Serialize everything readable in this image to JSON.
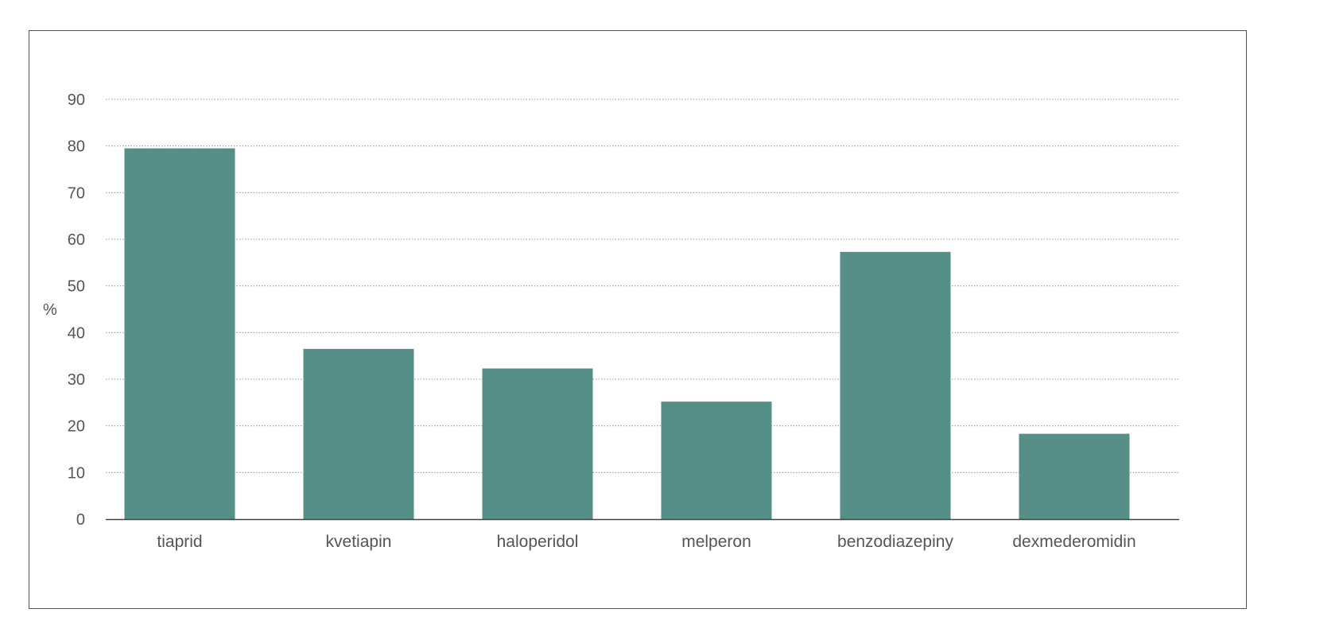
{
  "chart_data": {
    "type": "bar",
    "categories": [
      "tiaprid",
      "kvetiapin",
      "haloperidol",
      "melperon",
      "benzodiazepiny",
      "dexmederomidin"
    ],
    "values": [
      79.5,
      36.5,
      32.3,
      25.2,
      57.3,
      18.3
    ],
    "title": "",
    "xlabel": "",
    "ylabel": "%",
    "ylim": [
      0,
      90
    ],
    "yticks": [
      0,
      10,
      20,
      30,
      40,
      50,
      60,
      70,
      80,
      90
    ],
    "grid": true,
    "bar_color": "#558f87",
    "axis_color": "#444444",
    "grid_color": "#999999",
    "text_color": "#555555"
  }
}
